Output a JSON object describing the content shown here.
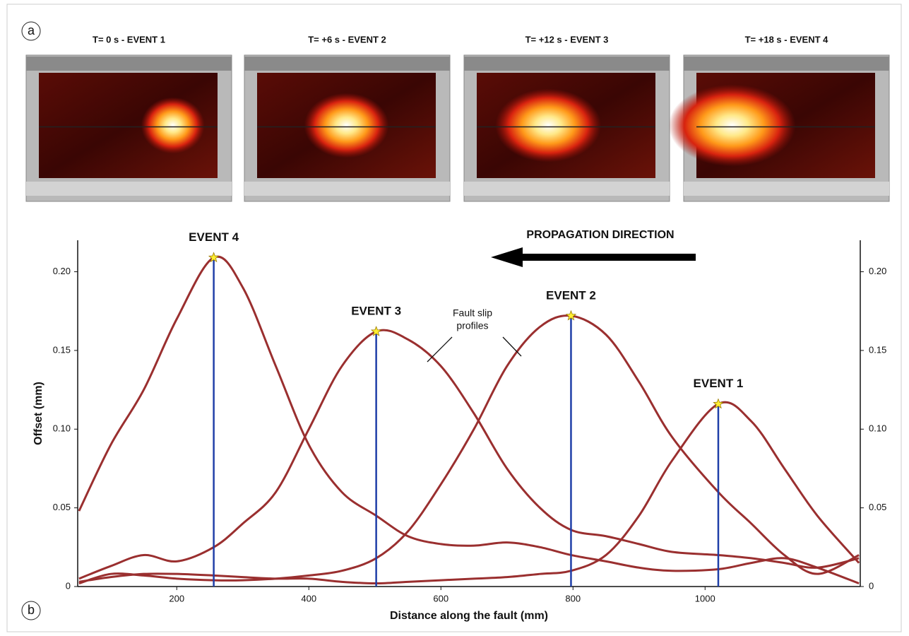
{
  "panel_a": {
    "label": "a",
    "images": [
      {
        "title": "T= 0 s - EVENT 1"
      },
      {
        "title": "T= +6 s - EVENT 2"
      },
      {
        "title": "T= +12 s - EVENT 3"
      },
      {
        "title": "T= +18 s - EVENT 4"
      }
    ]
  },
  "panel_b_label": "b",
  "chart_data": {
    "type": "line",
    "xlabel": "Distance along the fault (mm)",
    "ylabel": "Offset (mm)",
    "annotation": [
      "Fault slip",
      "profiles"
    ],
    "direction_label": "PROPAGATION DIRECTION",
    "xlim": [
      50,
      1235
    ],
    "ylim": [
      0,
      0.22
    ],
    "xticks": [
      200,
      400,
      600,
      800,
      1000
    ],
    "yticks": [
      0,
      0.05,
      {
        "value": 0.1,
        "label": "0.10"
      },
      0.15,
      {
        "value": 0.2,
        "label": "0.20"
      }
    ],
    "x": [
      52,
      100,
      150,
      200,
      256,
      300,
      350,
      400,
      450,
      502,
      550,
      600,
      650,
      700,
      750,
      797,
      850,
      900,
      950,
      1020,
      1070,
      1120,
      1170,
      1233
    ],
    "series": [
      {
        "name": "EVENT 1",
        "color": "#9a2f2f",
        "peak_index": 19,
        "values": [
          0.003,
          0.006,
          0.008,
          0.008,
          0.007,
          0.006,
          0.005,
          0.005,
          0.003,
          0.002,
          0.003,
          0.004,
          0.005,
          0.006,
          0.008,
          0.01,
          0.02,
          0.045,
          0.08,
          0.116,
          0.105,
          0.075,
          0.045,
          0.015
        ]
      },
      {
        "name": "EVENT 2",
        "color": "#9a2f2f",
        "peak_index": 15,
        "values": [
          0.002,
          0.008,
          0.007,
          0.005,
          0.004,
          0.004,
          0.005,
          0.007,
          0.01,
          0.018,
          0.035,
          0.065,
          0.1,
          0.14,
          0.165,
          0.172,
          0.16,
          0.13,
          0.095,
          0.06,
          0.04,
          0.02,
          0.008,
          0.02
        ]
      },
      {
        "name": "EVENT 3",
        "color": "#9a2f2f",
        "peak_index": 9,
        "values": [
          0.005,
          0.013,
          0.02,
          0.016,
          0.025,
          0.04,
          0.06,
          0.1,
          0.14,
          0.162,
          0.157,
          0.14,
          0.11,
          0.075,
          0.05,
          0.036,
          0.032,
          0.027,
          0.022,
          0.02,
          0.018,
          0.015,
          0.012,
          0.018
        ]
      },
      {
        "name": "EVENT 4",
        "color": "#9a2f2f",
        "peak_index": 4,
        "values": [
          0.048,
          0.09,
          0.125,
          0.17,
          0.209,
          0.19,
          0.14,
          0.09,
          0.06,
          0.045,
          0.032,
          0.027,
          0.026,
          0.028,
          0.025,
          0.02,
          0.016,
          0.012,
          0.01,
          0.011,
          0.015,
          0.018,
          0.012,
          0.002
        ]
      }
    ],
    "peak_line_color": "#1f3fa8"
  }
}
